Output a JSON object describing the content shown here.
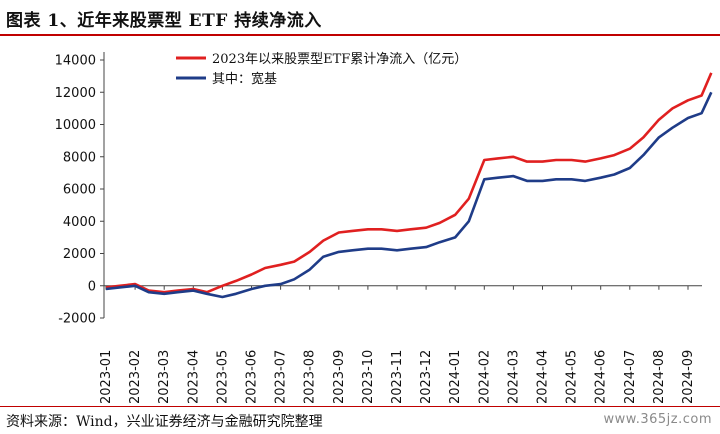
{
  "header": {
    "title": "图表 1、近年来股票型 ETF 持续净流入"
  },
  "footer": {
    "source": "资料来源：Wind，兴业证券经济与金融研究院整理",
    "watermark": "www.365jz.com"
  },
  "chart_data": {
    "type": "line",
    "xlabel": "",
    "ylabel": "",
    "ylim": [
      -2000,
      14000
    ],
    "yticks": [
      -2000,
      0,
      2000,
      4000,
      6000,
      8000,
      10000,
      12000,
      14000
    ],
    "x_tick_labels": [
      "2023-01",
      "2023-02",
      "2023-03",
      "2023-04",
      "2023-05",
      "2023-06",
      "2023-07",
      "2023-08",
      "2023-09",
      "2023-10",
      "2023-11",
      "2023-12",
      "2024-01",
      "2024-02",
      "2024-03",
      "2024-04",
      "2024-05",
      "2024-06",
      "2024-07",
      "2024-08",
      "2024-09"
    ],
    "grid": false,
    "legend": "top-center",
    "series": [
      {
        "name": "2023年以来股票型ETF累计净流入（亿元）",
        "color": "#e02020",
        "points": [
          [
            "2023-01",
            -100
          ],
          [
            "2023-01-15",
            0
          ],
          [
            "2023-02",
            100
          ],
          [
            "2023-02-15",
            -300
          ],
          [
            "2023-03",
            -400
          ],
          [
            "2023-03-15",
            -300
          ],
          [
            "2023-04",
            -200
          ],
          [
            "2023-04-15",
            -400
          ],
          [
            "2023-05",
            0
          ],
          [
            "2023-05-15",
            300
          ],
          [
            "2023-06",
            700
          ],
          [
            "2023-06-15",
            1100
          ],
          [
            "2023-07",
            1300
          ],
          [
            "2023-07-15",
            1500
          ],
          [
            "2023-08",
            2100
          ],
          [
            "2023-08-15",
            2800
          ],
          [
            "2023-09",
            3300
          ],
          [
            "2023-09-15",
            3400
          ],
          [
            "2023-10",
            3500
          ],
          [
            "2023-10-15",
            3500
          ],
          [
            "2023-11",
            3400
          ],
          [
            "2023-11-15",
            3500
          ],
          [
            "2023-12",
            3600
          ],
          [
            "2023-12-15",
            3900
          ],
          [
            "2024-01",
            4400
          ],
          [
            "2024-01-15",
            5400
          ],
          [
            "2024-02",
            7800
          ],
          [
            "2024-02-15",
            7900
          ],
          [
            "2024-03",
            8000
          ],
          [
            "2024-03-15",
            7700
          ],
          [
            "2024-04",
            7700
          ],
          [
            "2024-04-15",
            7800
          ],
          [
            "2024-05",
            7800
          ],
          [
            "2024-05-15",
            7700
          ],
          [
            "2024-06",
            7900
          ],
          [
            "2024-06-15",
            8100
          ],
          [
            "2024-07",
            8500
          ],
          [
            "2024-07-15",
            9200
          ],
          [
            "2024-08",
            10300
          ],
          [
            "2024-08-15",
            11000
          ],
          [
            "2024-09",
            11500
          ],
          [
            "2024-09-15",
            11800
          ],
          [
            "2024-09-25",
            13200
          ]
        ]
      },
      {
        "name": "其中：宽基",
        "color": "#1f3c88",
        "points": [
          [
            "2023-01",
            -200
          ],
          [
            "2023-01-15",
            -100
          ],
          [
            "2023-02",
            0
          ],
          [
            "2023-02-15",
            -400
          ],
          [
            "2023-03",
            -500
          ],
          [
            "2023-03-15",
            -400
          ],
          [
            "2023-04",
            -300
          ],
          [
            "2023-04-15",
            -500
          ],
          [
            "2023-05",
            -700
          ],
          [
            "2023-05-15",
            -500
          ],
          [
            "2023-06",
            -200
          ],
          [
            "2023-06-15",
            0
          ],
          [
            "2023-07",
            100
          ],
          [
            "2023-07-15",
            400
          ],
          [
            "2023-08",
            1000
          ],
          [
            "2023-08-15",
            1800
          ],
          [
            "2023-09",
            2100
          ],
          [
            "2023-09-15",
            2200
          ],
          [
            "2023-10",
            2300
          ],
          [
            "2023-10-15",
            2300
          ],
          [
            "2023-11",
            2200
          ],
          [
            "2023-11-15",
            2300
          ],
          [
            "2023-12",
            2400
          ],
          [
            "2023-12-15",
            2700
          ],
          [
            "2024-01",
            3000
          ],
          [
            "2024-01-15",
            4000
          ],
          [
            "2024-02",
            6600
          ],
          [
            "2024-02-15",
            6700
          ],
          [
            "2024-03",
            6800
          ],
          [
            "2024-03-15",
            6500
          ],
          [
            "2024-04",
            6500
          ],
          [
            "2024-04-15",
            6600
          ],
          [
            "2024-05",
            6600
          ],
          [
            "2024-05-15",
            6500
          ],
          [
            "2024-06",
            6700
          ],
          [
            "2024-06-15",
            6900
          ],
          [
            "2024-07",
            7300
          ],
          [
            "2024-07-15",
            8100
          ],
          [
            "2024-08",
            9200
          ],
          [
            "2024-08-15",
            9800
          ],
          [
            "2024-09",
            10400
          ],
          [
            "2024-09-15",
            10700
          ],
          [
            "2024-09-25",
            12000
          ]
        ]
      }
    ]
  }
}
